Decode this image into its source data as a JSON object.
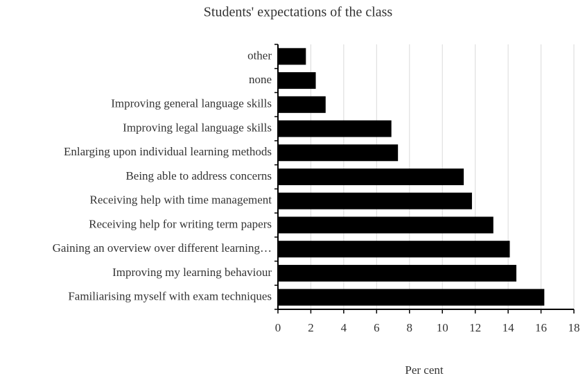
{
  "chart_data": {
    "type": "bar",
    "orientation": "horizontal",
    "title": "Students' expectations of the class",
    "x_label": "Per cent",
    "categories": [
      "other",
      "none",
      "Improving general language skills",
      "Improving legal language skills",
      "Enlarging upon individual learning methods",
      "Being able to address concerns",
      "Receiving help with time management",
      "Receiving help for writing term papers",
      "Gaining an overview over different learning…",
      "Improving my learning behaviour",
      "Familiarising myself with exam techniques"
    ],
    "values": [
      1.7,
      2.3,
      2.9,
      6.9,
      7.3,
      11.3,
      11.8,
      13.1,
      14.1,
      14.5,
      16.2
    ],
    "color": "#000000",
    "xlim": [
      0,
      18
    ],
    "xticks": [
      0,
      2,
      4,
      6,
      8,
      10,
      12,
      14,
      16,
      18
    ],
    "grid": true
  }
}
